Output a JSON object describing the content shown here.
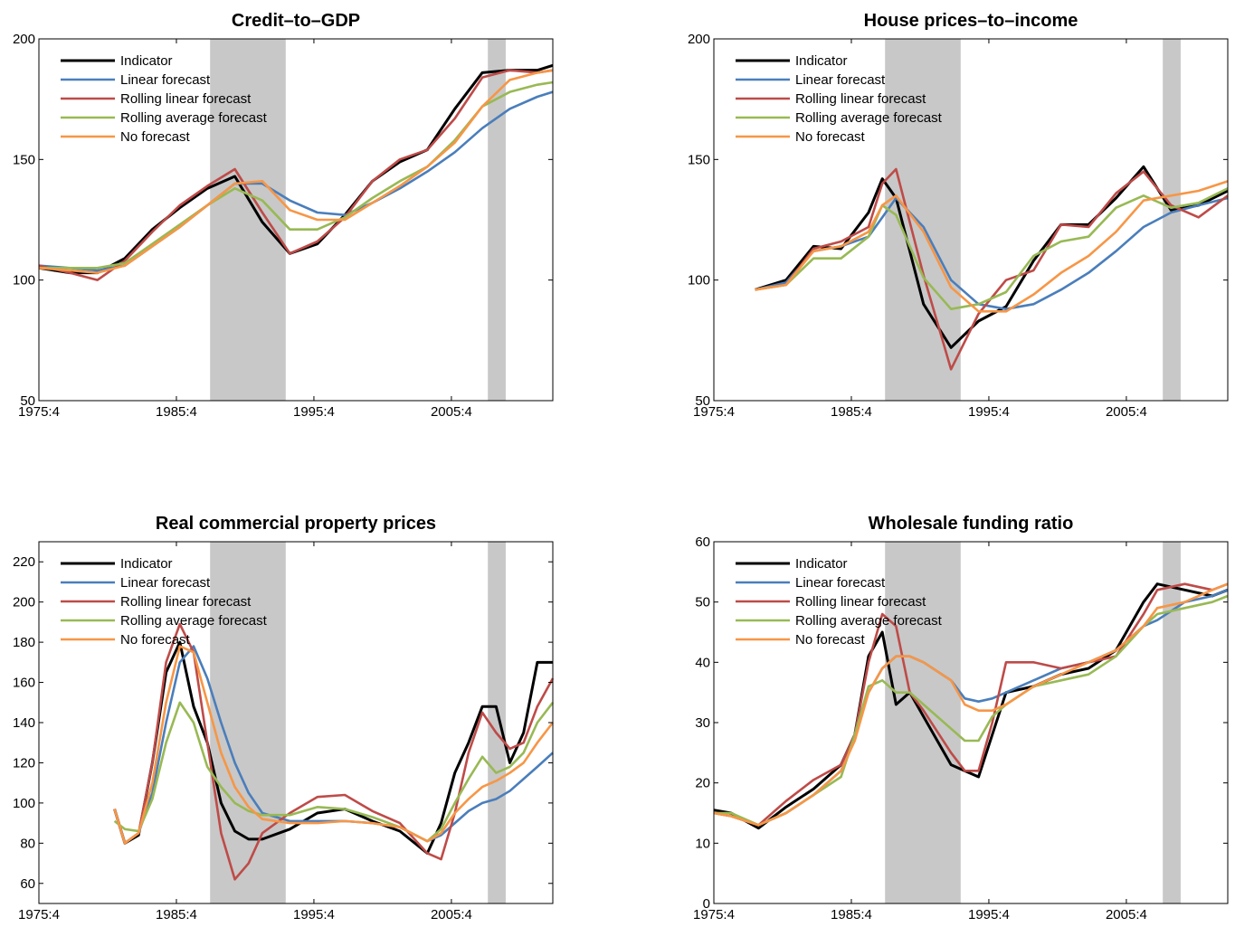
{
  "chart_data": [
    {
      "type": "line",
      "title": "Credit–to–GDP",
      "legend": "upper left",
      "xlim": [
        1975.75,
        2013.125
      ],
      "xticks": [
        {
          "value": 1975.75,
          "label": "1975:4"
        },
        {
          "value": 1985.75,
          "label": "1985:4"
        },
        {
          "value": 1995.75,
          "label": "1995:4"
        },
        {
          "value": 2005.75,
          "label": "2005:4"
        }
      ],
      "ylim": [
        50,
        200
      ],
      "yticks": [
        50,
        100,
        150,
        200
      ],
      "shaded": [
        [
          1988.2,
          1993.7
        ],
        [
          2008.4,
          2009.7
        ]
      ],
      "x": [
        1975.75,
        1978,
        1980,
        1982,
        1984,
        1986,
        1988,
        1990,
        1992,
        1994,
        1996,
        1998,
        2000,
        2002,
        2004,
        2006,
        2008,
        2010,
        2012,
        2013.125
      ],
      "series": [
        {
          "name": "Indicator",
          "color": "#000000",
          "values": [
            105,
            103,
            103,
            109,
            121,
            130,
            138,
            143,
            124,
            111,
            115,
            127,
            141,
            149,
            154,
            171,
            186,
            187,
            187,
            189
          ]
        },
        {
          "name": "Linear forecast",
          "color": "#4a7ebb",
          "values": [
            106,
            105,
            104,
            106,
            114,
            122,
            131,
            140,
            140,
            133,
            128,
            127,
            132,
            138,
            145,
            153,
            163,
            171,
            176,
            178
          ]
        },
        {
          "name": "Rolling linear forecast",
          "color": "#be4b48",
          "values": [
            106,
            103,
            100,
            108,
            120,
            131,
            139,
            146,
            128,
            111,
            116,
            126,
            141,
            150,
            154,
            167,
            184,
            187,
            186,
            187
          ]
        },
        {
          "name": "Rolling average forecast",
          "color": "#98b954",
          "values": [
            105,
            105,
            105,
            107,
            115,
            123,
            131,
            138,
            133,
            121,
            121,
            126,
            134,
            141,
            147,
            158,
            172,
            178,
            181,
            182
          ]
        },
        {
          "name": "No forecast",
          "color": "#f79646",
          "values": [
            105,
            104,
            103,
            106,
            114,
            122,
            131,
            140,
            141,
            129,
            125,
            125,
            132,
            139,
            147,
            157,
            172,
            183,
            186,
            187
          ]
        }
      ]
    },
    {
      "type": "line",
      "title": "House prices–to–income",
      "legend": "upper left",
      "xlim": [
        1975.75,
        2013.125
      ],
      "xticks": [
        {
          "value": 1975.75,
          "label": "1975:4"
        },
        {
          "value": 1985.75,
          "label": "1985:4"
        },
        {
          "value": 1995.75,
          "label": "1995:4"
        },
        {
          "value": 2005.75,
          "label": "2005:4"
        }
      ],
      "ylim": [
        50,
        200
      ],
      "yticks": [
        50,
        100,
        150,
        200
      ],
      "shaded": [
        [
          1988.2,
          1993.7
        ],
        [
          2008.4,
          2009.7
        ]
      ],
      "x": [
        1978.75,
        1981,
        1983,
        1985,
        1987,
        1988,
        1989,
        1991,
        1993,
        1995,
        1997,
        1999,
        2001,
        2003,
        2005,
        2007,
        2009,
        2011,
        2013.125
      ],
      "series": [
        {
          "name": "Indicator",
          "color": "#000000",
          "values": [
            96,
            100,
            114,
            113,
            128,
            142,
            134,
            90,
            72,
            83,
            89,
            108,
            123,
            123,
            134,
            147,
            129,
            131,
            137
          ]
        },
        {
          "name": "Linear forecast",
          "color": "#4a7ebb",
          "values": [
            96,
            99,
            112,
            114,
            118,
            126,
            134,
            122,
            100,
            90,
            88,
            90,
            96,
            103,
            112,
            122,
            128,
            131,
            134
          ]
        },
        {
          "name": "Rolling linear forecast",
          "color": "#be4b48",
          "values": [
            96,
            98,
            113,
            116,
            122,
            140,
            146,
            102,
            63,
            86,
            100,
            104,
            123,
            122,
            136,
            145,
            131,
            126,
            135
          ]
        },
        {
          "name": "Rolling average forecast",
          "color": "#98b954",
          "values": [
            96,
            98,
            109,
            109,
            118,
            131,
            127,
            101,
            88,
            90,
            95,
            110,
            116,
            118,
            130,
            135,
            130,
            132,
            138
          ]
        },
        {
          "name": "No forecast",
          "color": "#f79646",
          "values": [
            96,
            98,
            112,
            114,
            120,
            131,
            135,
            120,
            97,
            87,
            87,
            94,
            103,
            110,
            120,
            133,
            135,
            137,
            141
          ]
        }
      ]
    },
    {
      "type": "line",
      "title": "Real commercial property prices",
      "legend": "upper left",
      "xlim": [
        1975.75,
        2013.125
      ],
      "xticks": [
        {
          "value": 1975.75,
          "label": "1975:4"
        },
        {
          "value": 1985.75,
          "label": "1985:4"
        },
        {
          "value": 1995.75,
          "label": "1995:4"
        },
        {
          "value": 2005.75,
          "label": "2005:4"
        }
      ],
      "ylim": [
        50,
        230
      ],
      "yticks": [
        60,
        80,
        100,
        120,
        140,
        160,
        180,
        200,
        220
      ],
      "shaded": [
        [
          1988.2,
          1993.7
        ],
        [
          2008.4,
          2009.7
        ]
      ],
      "x": [
        1981.25,
        1982,
        1983,
        1984,
        1985,
        1986,
        1987,
        1988,
        1989,
        1990,
        1991,
        1992,
        1994,
        1996,
        1998,
        2000,
        2002,
        2004,
        2005,
        2006,
        2007,
        2008,
        2009,
        2010,
        2011,
        2012,
        2013.125
      ],
      "series": [
        {
          "name": "Indicator",
          "color": "#000000",
          "values": [
            97,
            80,
            84,
            120,
            165,
            180,
            148,
            130,
            100,
            86,
            82,
            82,
            87,
            95,
            97,
            91,
            86,
            75,
            90,
            115,
            130,
            148,
            148,
            120,
            135,
            170,
            170
          ]
        },
        {
          "name": "Linear forecast",
          "color": "#4a7ebb",
          "values": [
            97,
            80,
            85,
            105,
            140,
            170,
            178,
            162,
            140,
            120,
            105,
            95,
            91,
            91,
            91,
            90,
            88,
            81,
            84,
            90,
            96,
            100,
            102,
            106,
            112,
            118,
            125
          ]
        },
        {
          "name": "Rolling linear forecast",
          "color": "#be4b48",
          "values": [
            97,
            80,
            85,
            120,
            170,
            189,
            175,
            130,
            85,
            62,
            70,
            85,
            95,
            103,
            104,
            96,
            90,
            75,
            72,
            95,
            125,
            145,
            135,
            127,
            130,
            148,
            162
          ]
        },
        {
          "name": "Rolling average forecast",
          "color": "#98b954",
          "values": [
            91,
            87,
            86,
            102,
            130,
            150,
            140,
            118,
            108,
            100,
            96,
            94,
            94,
            98,
            97,
            93,
            88,
            81,
            87,
            100,
            112,
            123,
            115,
            118,
            125,
            140,
            150
          ]
        },
        {
          "name": "No forecast",
          "color": "#f79646",
          "values": [
            97,
            80,
            85,
            110,
            150,
            178,
            175,
            150,
            125,
            108,
            98,
            92,
            90,
            90,
            91,
            90,
            88,
            81,
            85,
            95,
            102,
            108,
            111,
            115,
            120,
            130,
            140
          ]
        }
      ]
    },
    {
      "type": "line",
      "title": "Wholesale funding ratio",
      "legend": "upper left",
      "xlim": [
        1975.75,
        2013.125
      ],
      "xticks": [
        {
          "value": 1975.75,
          "label": "1975:4"
        },
        {
          "value": 1985.75,
          "label": "1985:4"
        },
        {
          "value": 1995.75,
          "label": "1995:4"
        },
        {
          "value": 2005.75,
          "label": "2005:4"
        }
      ],
      "ylim": [
        0,
        60
      ],
      "yticks": [
        0,
        10,
        20,
        30,
        40,
        50,
        60
      ],
      "shaded": [
        [
          1988.2,
          1993.7
        ],
        [
          2008.4,
          2009.7
        ]
      ],
      "x": [
        1975.75,
        1977,
        1979,
        1981,
        1983,
        1985,
        1986,
        1987,
        1988,
        1989,
        1990,
        1991,
        1993,
        1994,
        1995,
        1996,
        1997,
        1999,
        2001,
        2003,
        2005,
        2007,
        2008,
        2010,
        2012,
        2013.125
      ],
      "series": [
        {
          "name": "Indicator",
          "color": "#000000",
          "values": [
            15.5,
            15,
            12.5,
            16,
            19,
            23,
            28,
            41,
            45,
            33,
            35,
            31,
            23,
            22,
            21,
            28,
            35,
            36,
            38,
            39,
            42,
            50,
            53,
            52,
            51,
            52
          ]
        },
        {
          "name": "Linear forecast",
          "color": "#4a7ebb",
          "values": [
            15,
            14.5,
            13,
            15,
            18,
            22,
            28,
            35,
            39,
            41,
            41,
            40,
            37,
            34,
            33.5,
            34,
            35,
            37,
            39,
            40,
            42,
            46,
            47,
            50,
            51,
            52
          ]
        },
        {
          "name": "Rolling linear forecast",
          "color": "#be4b48",
          "values": [
            15,
            14.5,
            13,
            17,
            20.5,
            23,
            28,
            40,
            48,
            46,
            35,
            32,
            25,
            22,
            22,
            30,
            40,
            40,
            39,
            40,
            41,
            48,
            52,
            53,
            52,
            53
          ]
        },
        {
          "name": "Rolling average forecast",
          "color": "#98b954",
          "values": [
            15,
            15,
            13,
            15,
            18,
            21,
            28,
            36,
            37,
            35,
            35,
            33,
            29,
            27,
            27,
            31,
            33,
            36,
            37,
            38,
            41,
            46,
            48,
            49,
            50,
            51
          ]
        },
        {
          "name": "No forecast",
          "color": "#f79646",
          "values": [
            15,
            14.5,
            13,
            15,
            18,
            22,
            27,
            35,
            39,
            41,
            41,
            40,
            37,
            33,
            32,
            32,
            33,
            36,
            38,
            40,
            42,
            46,
            49,
            50,
            52,
            53
          ]
        }
      ]
    }
  ]
}
